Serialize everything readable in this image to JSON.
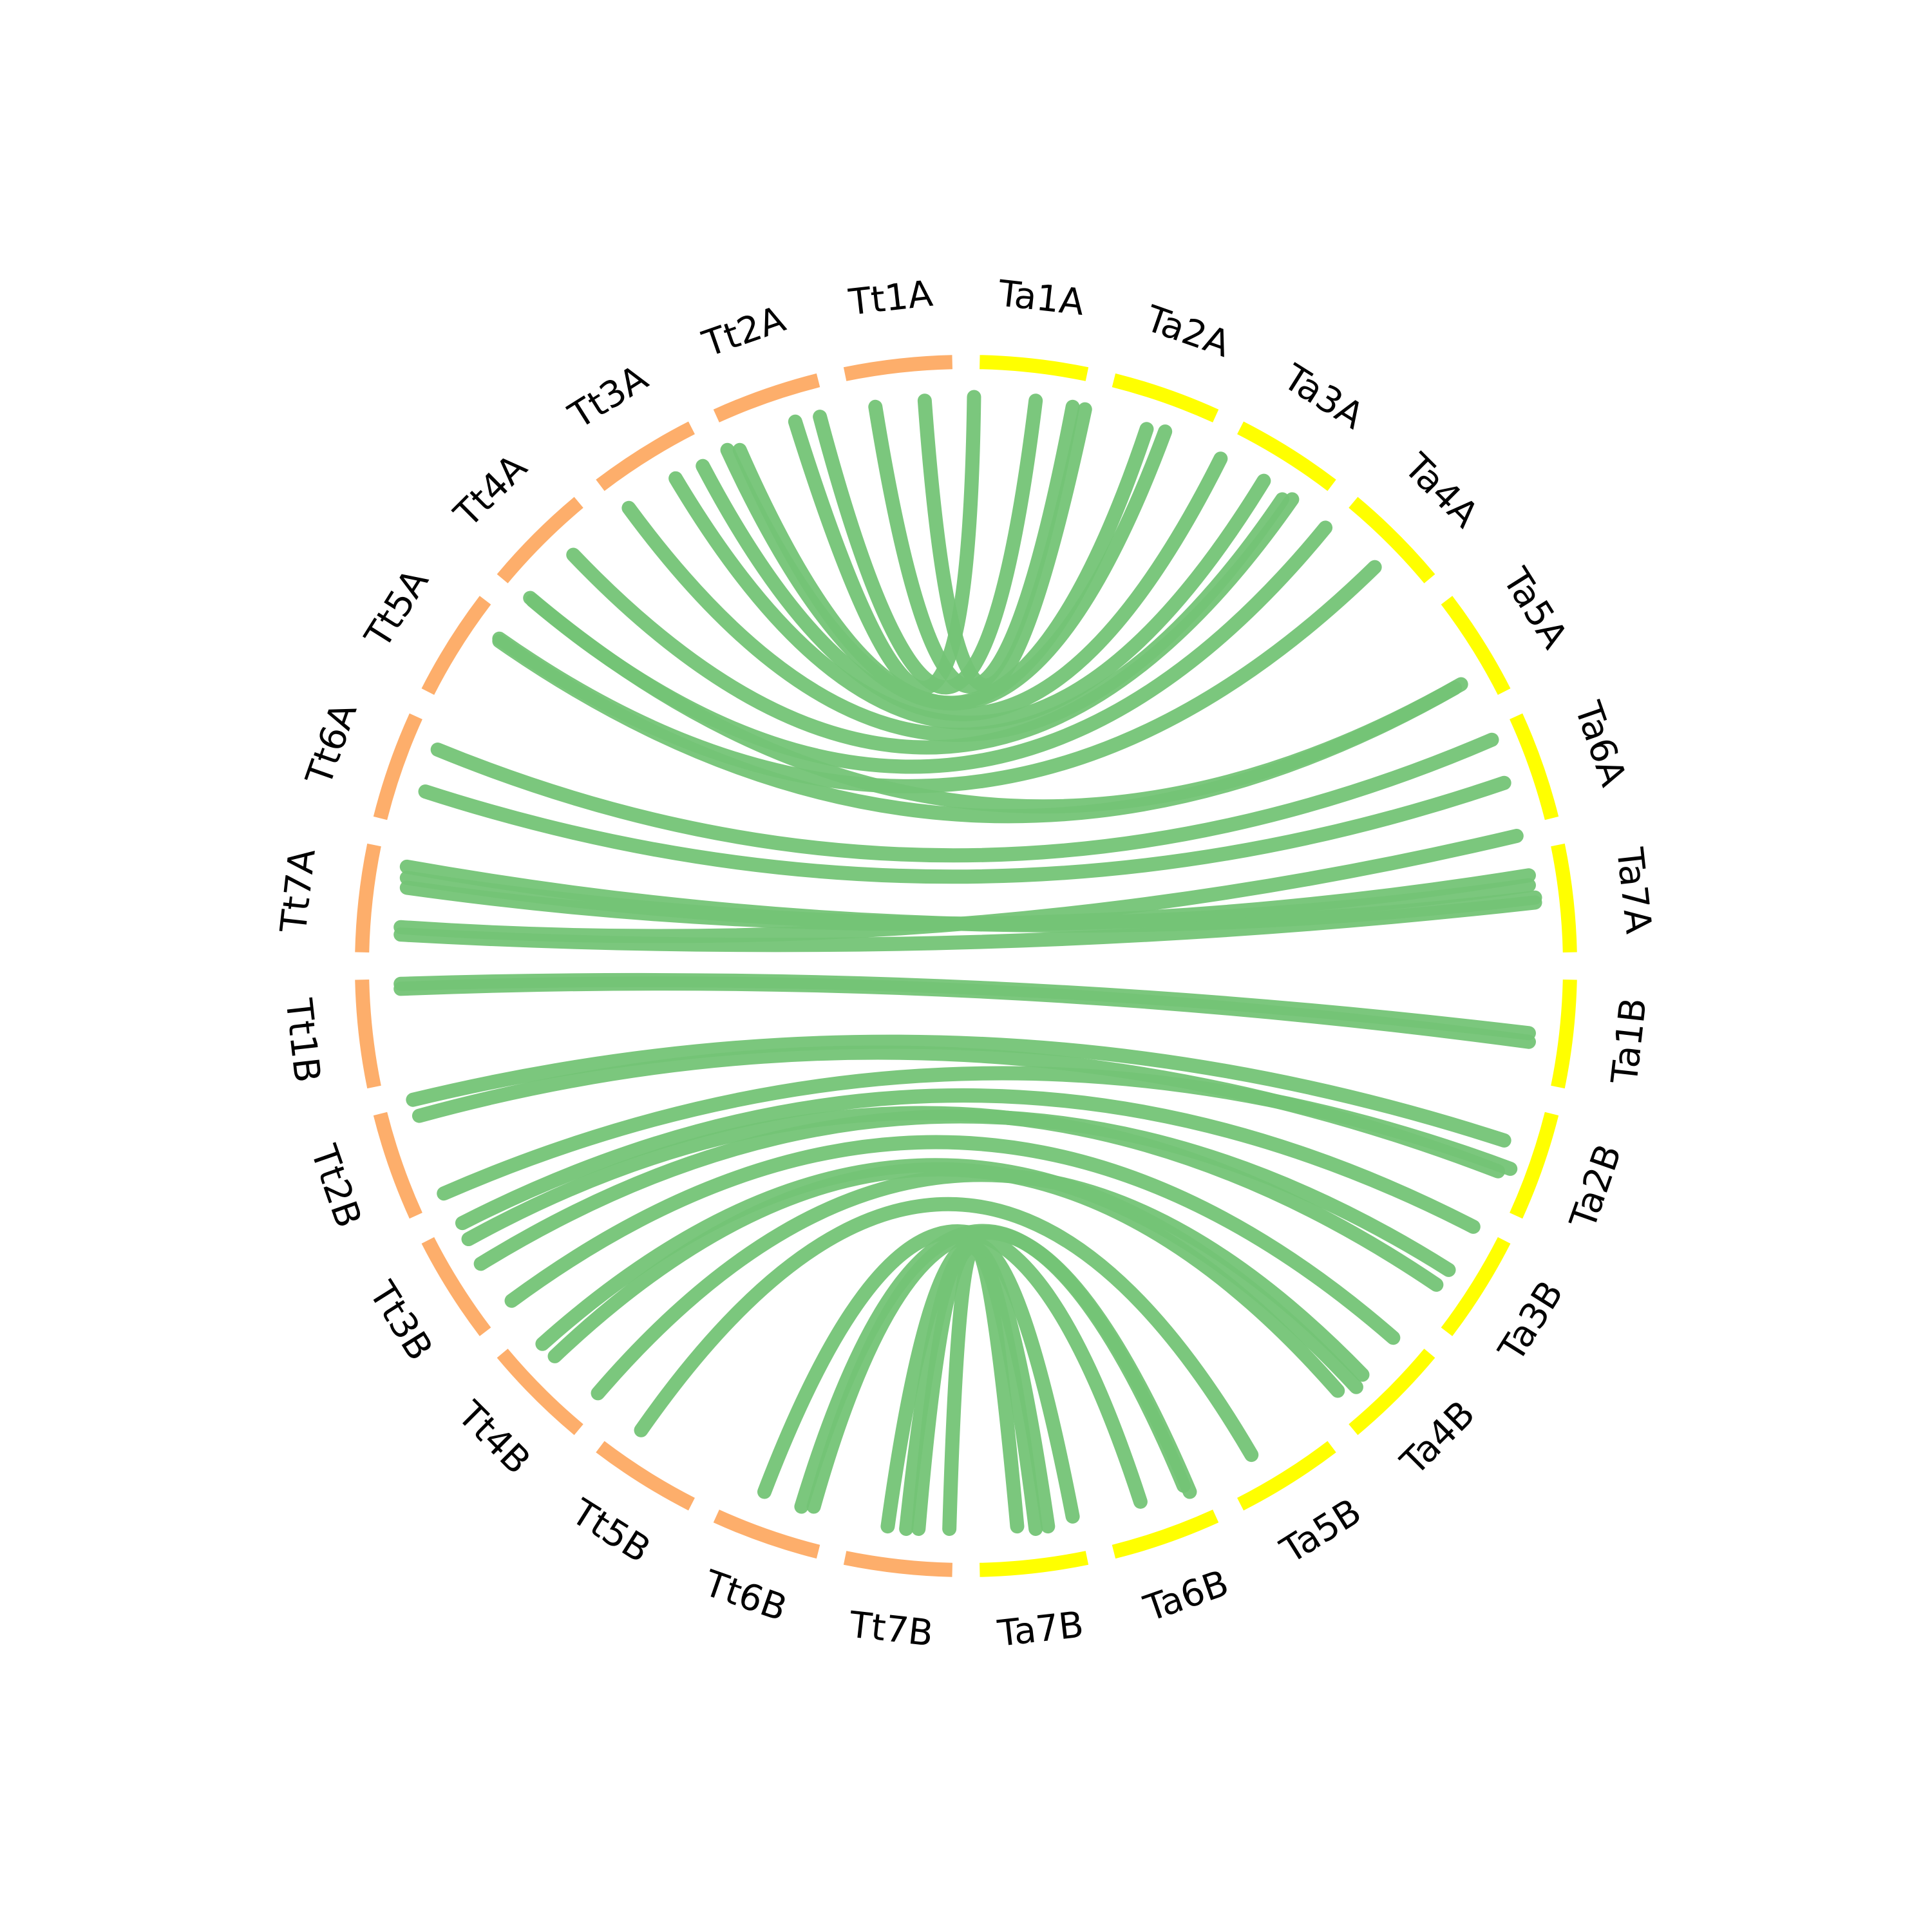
{
  "segments": [
    {
      "label": "Ta1A",
      "color": "#ffff00"
    },
    {
      "label": "Ta2A",
      "color": "#ffff00"
    },
    {
      "label": "Ta3A",
      "color": "#ffff00"
    },
    {
      "label": "Ta4A",
      "color": "#ffff00"
    },
    {
      "label": "Ta5A",
      "color": "#ffff00"
    },
    {
      "label": "Ta6A",
      "color": "#ffff00"
    },
    {
      "label": "Ta7A",
      "color": "#ffff00"
    },
    {
      "label": "Ta1B",
      "color": "#ffff00"
    },
    {
      "label": "Ta2B",
      "color": "#ffff00"
    },
    {
      "label": "Ta3B",
      "color": "#ffff00"
    },
    {
      "label": "Ta4B",
      "color": "#ffff00"
    },
    {
      "label": "Ta5B",
      "color": "#ffff00"
    },
    {
      "label": "Ta6B",
      "color": "#ffff00"
    },
    {
      "label": "Ta7B",
      "color": "#ffff00"
    },
    {
      "label": "Tt7B",
      "color": "#fdae6b"
    },
    {
      "label": "Tt6B",
      "color": "#fdae6b"
    },
    {
      "label": "Tt5B",
      "color": "#fdae6b"
    },
    {
      "label": "Tt4B",
      "color": "#fdae6b"
    },
    {
      "label": "Tt3B",
      "color": "#fdae6b"
    },
    {
      "label": "Tt2B",
      "color": "#fdae6b"
    },
    {
      "label": "Tt1B",
      "color": "#fdae6b"
    },
    {
      "label": "Tt7A",
      "color": "#fdae6b"
    },
    {
      "label": "Tt6A",
      "color": "#fdae6b"
    },
    {
      "label": "Tt5A",
      "color": "#fdae6b"
    },
    {
      "label": "Tt4A",
      "color": "#fdae6b"
    },
    {
      "label": "Tt3A",
      "color": "#fdae6b"
    },
    {
      "label": "Tt2A",
      "color": "#fdae6b"
    },
    {
      "label": "Tt1A",
      "color": "#fdae6b"
    }
  ],
  "link_color": "#74c476"
}
